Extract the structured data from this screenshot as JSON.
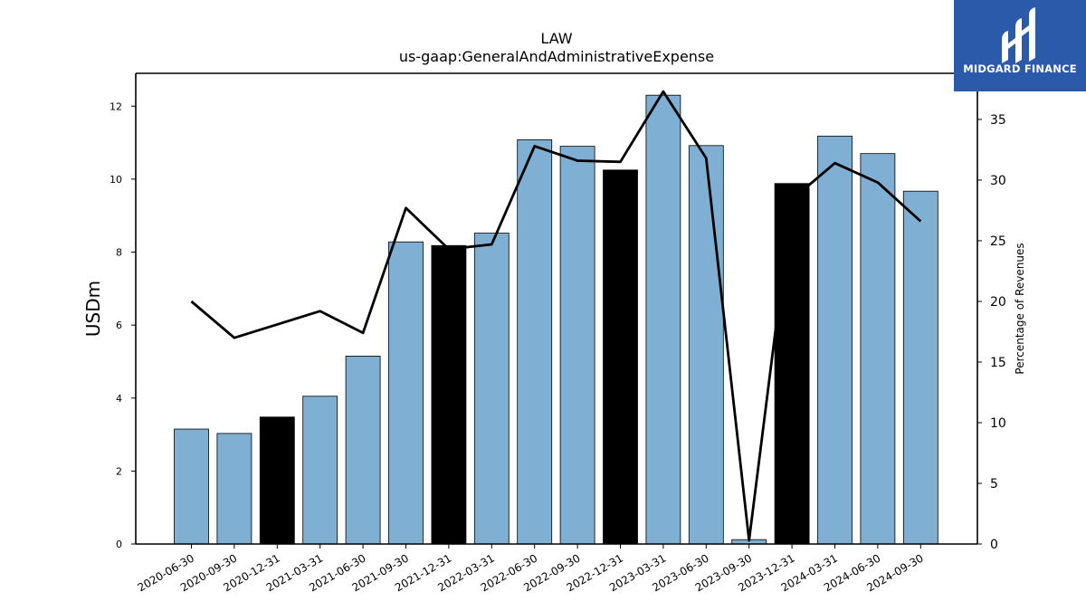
{
  "chart_data": {
    "type": "bar",
    "title": "LAW",
    "subtitle": "us-gaap:GeneralAndAdministrativeExpense",
    "ylabel": "USDm",
    "y2label": "Percentage of Revenues",
    "categories": [
      "2020-06-30",
      "2020-09-30",
      "2020-12-31",
      "2021-03-31",
      "2021-06-30",
      "2021-09-30",
      "2021-12-31",
      "2022-03-31",
      "2022-06-30",
      "2022-09-30",
      "2022-12-31",
      "2023-03-31",
      "2023-06-30",
      "2023-09-30",
      "2023-12-31",
      "2024-03-31",
      "2024-06-30",
      "2024-09-30"
    ],
    "series": [
      {
        "type": "bar",
        "values": [
          3.15,
          3.03,
          3.48,
          4.05,
          5.15,
          8.28,
          8.18,
          8.52,
          11.08,
          10.9,
          10.25,
          12.3,
          10.92,
          0.12,
          9.88,
          11.18,
          10.7,
          9.67
        ],
        "highlight": [
          false,
          false,
          true,
          false,
          false,
          false,
          true,
          false,
          false,
          false,
          true,
          false,
          false,
          false,
          true,
          false,
          false,
          false
        ],
        "color": "#7fafd3",
        "highlight_color": "#000000"
      },
      {
        "type": "line",
        "axis": "right",
        "values": [
          20.0,
          17.0,
          18.1,
          19.2,
          17.4,
          27.7,
          24.3,
          24.7,
          32.8,
          31.6,
          31.5,
          37.3,
          31.8,
          0.3,
          28.4,
          31.4,
          29.8,
          26.6
        ],
        "color": "#000000"
      }
    ],
    "ylim": [
      0,
      12.9
    ],
    "yticks": [
      0,
      2,
      4,
      6,
      8,
      10,
      12
    ],
    "y2lim": [
      0,
      38.8
    ],
    "y2ticks": [
      0,
      5,
      10,
      15,
      20,
      25,
      30,
      35
    ],
    "grid": false
  },
  "logo": {
    "text": "MIDGARD FINANCE",
    "background": "#2b5aab"
  }
}
